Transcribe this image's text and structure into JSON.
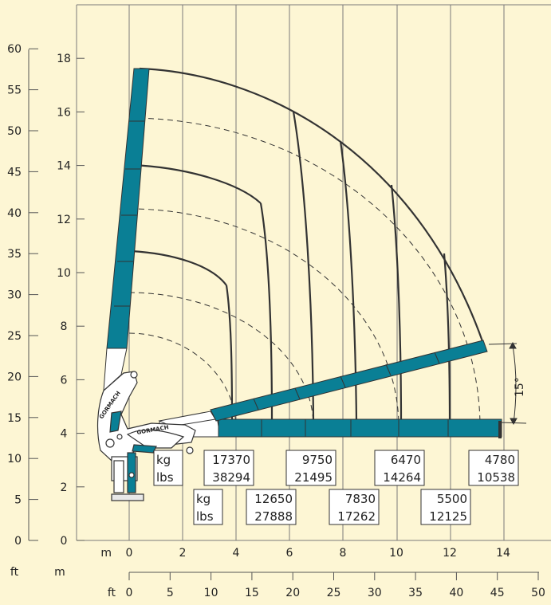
{
  "axes": {
    "ft_left_label": "ft",
    "m_left_label": "m",
    "ft_left_ticks": [
      "0",
      "5",
      "10",
      "15",
      "20",
      "25",
      "30",
      "35",
      "40",
      "45",
      "50",
      "55",
      "60"
    ],
    "m_left_ticks": [
      "0",
      "2",
      "4",
      "6",
      "8",
      "10",
      "12",
      "14",
      "16",
      "18"
    ],
    "m_bottom_label": "m",
    "m_bottom_ticks": [
      "0",
      "2",
      "4",
      "6",
      "8",
      "10",
      "12",
      "14"
    ],
    "ft_bottom_label": "ft",
    "ft_bottom_ticks": [
      "0",
      "5",
      "10",
      "15",
      "20",
      "25",
      "30",
      "35",
      "40",
      "45",
      "50"
    ]
  },
  "angle_label": "15°",
  "brand_text": "GORMACH",
  "unit_boxes": [
    {
      "kg": "kg",
      "lbs": "lbs"
    },
    {
      "kg": "kg",
      "lbs": "lbs"
    }
  ],
  "loads": [
    {
      "kg": "17370",
      "lbs": "38294"
    },
    {
      "kg": "12650",
      "lbs": "27888"
    },
    {
      "kg": "9750",
      "lbs": "21495"
    },
    {
      "kg": "7830",
      "lbs": "17262"
    },
    {
      "kg": "6470",
      "lbs": "14264"
    },
    {
      "kg": "5500",
      "lbs": "12125"
    },
    {
      "kg": "4780",
      "lbs": "10538"
    }
  ],
  "colors": {
    "boom": "#0a7f95",
    "background": "#fdf6d4",
    "grid": "#7a7a7a",
    "line": "#333333"
  }
}
